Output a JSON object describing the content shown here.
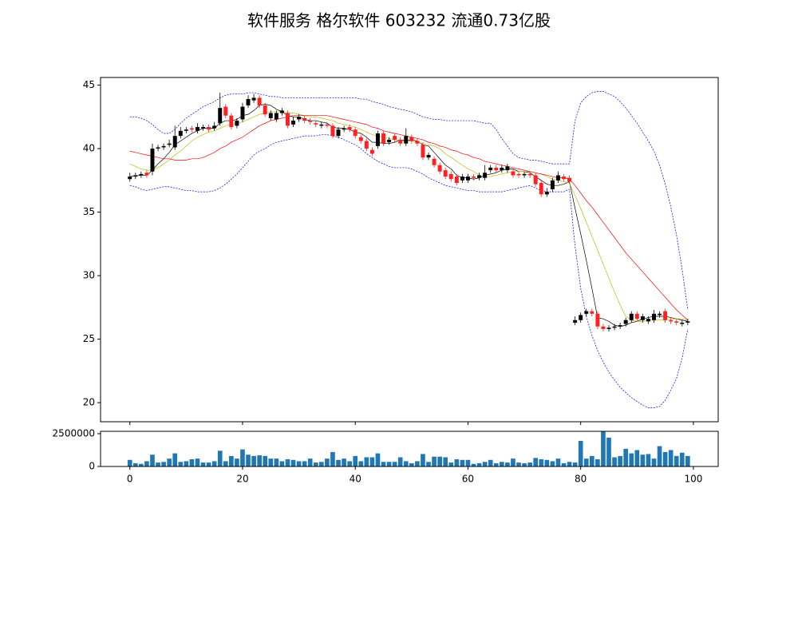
{
  "chart_data": [
    {
      "type": "candlestick",
      "title": "软件服务 格尔软件 603232 流通0.73亿股",
      "x": [
        0,
        1,
        2,
        3,
        4,
        5,
        6,
        7,
        8,
        9,
        10,
        11,
        12,
        13,
        14,
        15,
        16,
        17,
        18,
        19,
        20,
        21,
        22,
        23,
        24,
        25,
        26,
        27,
        28,
        29,
        30,
        31,
        32,
        33,
        34,
        35,
        36,
        37,
        38,
        39,
        40,
        41,
        42,
        43,
        44,
        45,
        46,
        47,
        48,
        49,
        50,
        51,
        52,
        53,
        54,
        55,
        56,
        57,
        58,
        59,
        60,
        61,
        62,
        63,
        64,
        65,
        66,
        67,
        68,
        69,
        70,
        71,
        72,
        73,
        74,
        75,
        76,
        77,
        78,
        79,
        80,
        81,
        82,
        83,
        84,
        85,
        86,
        87,
        88,
        89,
        90,
        91,
        92,
        93,
        94,
        95,
        96,
        97,
        98,
        99
      ],
      "open": [
        37.6,
        37.8,
        37.9,
        38.1,
        38.2,
        40.0,
        40.1,
        40.3,
        40.1,
        41.0,
        41.4,
        41.6,
        41.4,
        41.6,
        41.7,
        41.6,
        42.0,
        43.3,
        42.6,
        41.8,
        42.3,
        43.4,
        43.8,
        44.0,
        43.4,
        42.4,
        42.3,
        42.8,
        42.8,
        41.9,
        42.3,
        42.4,
        42.2,
        42.0,
        41.8,
        41.9,
        41.8,
        41.0,
        41.5,
        41.7,
        41.5,
        40.9,
        40.6,
        39.9,
        40.2,
        41.2,
        40.5,
        41.0,
        40.7,
        40.4,
        40.9,
        40.6,
        40.3,
        39.3,
        39.2,
        38.7,
        38.3,
        38.0,
        37.8,
        37.5,
        37.5,
        37.8,
        37.7,
        37.7,
        38.3,
        38.5,
        38.3,
        38.3,
        38.2,
        38.0,
        37.9,
        38.0,
        37.9,
        37.3,
        36.4,
        36.8,
        37.5,
        37.8,
        37.7,
        26.3,
        26.5,
        27.0,
        27.2,
        27.0,
        26.0,
        25.8,
        25.9,
        26.0,
        26.2,
        26.5,
        27.0,
        26.5,
        26.4,
        26.5,
        26.9,
        27.2,
        26.5,
        26.4,
        26.2,
        26.3
      ],
      "high": [
        38.1,
        38.1,
        38.2,
        38.3,
        40.4,
        40.3,
        40.4,
        40.7,
        41.8,
        41.7,
        41.7,
        41.8,
        42.0,
        41.9,
        41.9,
        42.1,
        44.4,
        43.5,
        42.8,
        42.4,
        43.6,
        44.2,
        44.3,
        44.2,
        43.6,
        43.0,
        43.0,
        43.2,
        43.0,
        42.5,
        42.7,
        42.6,
        42.4,
        42.2,
        42.1,
        42.1,
        42.0,
        41.7,
        41.8,
        41.9,
        41.7,
        41.1,
        40.8,
        40.1,
        41.4,
        41.4,
        40.9,
        41.2,
        40.9,
        41.6,
        41.1,
        40.8,
        40.5,
        39.7,
        39.4,
        38.9,
        38.5,
        38.2,
        38.0,
        38.0,
        38.0,
        38.0,
        38.1,
        38.7,
        38.7,
        38.7,
        38.7,
        38.8,
        38.4,
        38.2,
        38.2,
        38.2,
        38.1,
        37.5,
        36.9,
        37.7,
        38.2,
        38.0,
        37.9,
        26.8,
        27.1,
        27.4,
        27.4,
        27.2,
        26.2,
        26.1,
        26.2,
        26.3,
        26.7,
        27.2,
        27.2,
        27.0,
        26.8,
        27.3,
        27.2,
        27.4,
        26.7,
        26.6,
        26.5,
        26.6
      ],
      "low": [
        37.4,
        37.6,
        37.7,
        37.7,
        37.9,
        39.8,
        39.9,
        40.1,
        39.9,
        40.8,
        41.2,
        41.3,
        41.2,
        41.4,
        41.3,
        41.4,
        41.8,
        42.4,
        41.5,
        41.6,
        42.1,
        43.2,
        43.6,
        43.2,
        42.5,
        42.2,
        42.1,
        42.6,
        41.6,
        41.7,
        42.1,
        42.0,
        41.9,
        41.7,
        41.6,
        41.6,
        40.8,
        40.8,
        41.3,
        41.3,
        40.8,
        40.4,
        39.8,
        39.4,
        40.0,
        40.2,
        40.3,
        40.5,
        40.2,
        40.2,
        40.4,
        40.2,
        39.1,
        39.1,
        38.5,
        38.0,
        37.6,
        37.4,
        37.1,
        37.3,
        37.3,
        37.5,
        37.5,
        37.5,
        38.1,
        38.1,
        38.1,
        38.1,
        37.7,
        37.7,
        37.7,
        37.7,
        37.0,
        36.2,
        36.2,
        36.6,
        37.3,
        37.4,
        37.2,
        26.1,
        26.3,
        26.8,
        26.8,
        25.8,
        25.6,
        25.6,
        25.7,
        25.8,
        26.0,
        26.3,
        26.4,
        26.3,
        26.2,
        26.3,
        26.7,
        26.3,
        26.2,
        26.1,
        26.0,
        26.1
      ],
      "close": [
        37.8,
        37.9,
        38.0,
        37.9,
        40.0,
        40.1,
        40.2,
        40.4,
        41.0,
        41.4,
        41.5,
        41.5,
        41.7,
        41.7,
        41.5,
        41.8,
        43.2,
        42.6,
        41.7,
        42.2,
        43.3,
        43.9,
        44.0,
        43.4,
        42.7,
        42.8,
        42.8,
        43.0,
        41.8,
        42.2,
        42.5,
        42.2,
        42.1,
        41.9,
        41.9,
        41.8,
        41.0,
        41.5,
        41.6,
        41.5,
        41.0,
        40.6,
        40.0,
        39.6,
        41.2,
        40.4,
        40.7,
        40.7,
        40.4,
        41.0,
        40.6,
        40.4,
        39.3,
        39.5,
        38.7,
        38.2,
        37.8,
        37.6,
        37.3,
        37.8,
        37.8,
        37.7,
        37.9,
        38.1,
        38.5,
        38.3,
        38.5,
        38.6,
        37.9,
        37.9,
        38.0,
        37.9,
        37.2,
        36.4,
        36.6,
        37.5,
        37.9,
        37.6,
        37.4,
        26.5,
        26.9,
        27.2,
        27.0,
        26.0,
        25.8,
        25.9,
        26.0,
        26.1,
        26.5,
        27.0,
        26.6,
        26.8,
        26.6,
        27.0,
        27.0,
        26.5,
        26.4,
        26.3,
        26.3,
        26.4
      ],
      "up_color": "#000000",
      "down_color": "#ff2020",
      "lines": [
        {
          "color": "#000000",
          "style": "solid",
          "values": [
            37.8,
            37.85,
            37.9,
            37.9,
            38.3,
            38.8,
            39.2,
            39.7,
            40.3,
            40.6,
            40.9,
            41.2,
            41.4,
            41.6,
            41.6,
            41.6,
            42.0,
            42.2,
            42.2,
            42.3,
            42.6,
            42.7,
            43.0,
            43.4,
            43.5,
            43.4,
            43.1,
            42.9,
            42.6,
            42.5,
            42.5,
            42.3,
            42.2,
            42.2,
            42.1,
            42.0,
            41.7,
            41.6,
            41.6,
            41.5,
            41.3,
            41.2,
            40.9,
            40.5,
            40.5,
            40.4,
            40.4,
            40.5,
            40.7,
            40.6,
            40.7,
            40.6,
            40.3,
            40.2,
            39.7,
            39.2,
            38.7,
            38.4,
            37.9,
            37.7,
            37.7,
            37.6,
            37.7,
            37.9,
            38.0,
            38.1,
            38.3,
            38.4,
            38.4,
            38.2,
            38.2,
            38.1,
            37.8,
            37.5,
            37.2,
            37.1,
            37.1,
            37.2,
            37.4,
            35.3,
            33.3,
            31.2,
            29.0,
            26.7,
            26.6,
            26.4,
            26.1,
            26.0,
            26.1,
            26.3,
            26.4,
            26.6,
            26.7,
            26.8,
            26.8,
            26.8,
            26.7,
            26.6,
            26.5,
            26.4
          ]
        },
        {
          "color": "#bcbc10",
          "style": "solid",
          "values": [
            38.8,
            38.6,
            38.4,
            38.3,
            38.3,
            38.5,
            38.8,
            39.1,
            39.5,
            39.8,
            40.2,
            40.6,
            40.9,
            41.1,
            41.3,
            41.4,
            41.6,
            41.8,
            41.9,
            42.0,
            42.1,
            42.3,
            42.5,
            42.7,
            42.8,
            42.9,
            42.9,
            42.9,
            42.8,
            42.8,
            42.7,
            42.6,
            42.5,
            42.5,
            42.4,
            42.3,
            42.2,
            42.0,
            41.9,
            41.8,
            41.7,
            41.5,
            41.3,
            41.1,
            41.0,
            40.9,
            40.8,
            40.7,
            40.6,
            40.6,
            40.6,
            40.5,
            40.4,
            40.3,
            40.2,
            40.0,
            39.6,
            39.3,
            39.0,
            38.7,
            38.4,
            38.2,
            37.9,
            37.8,
            37.8,
            37.9,
            38.0,
            38.1,
            38.2,
            38.2,
            38.2,
            38.2,
            38.1,
            38.0,
            37.8,
            37.6,
            37.5,
            37.4,
            37.3,
            36.3,
            35.3,
            34.2,
            33.1,
            32.0,
            30.9,
            29.8,
            28.7,
            27.7,
            26.8,
            26.5,
            26.4,
            26.4,
            26.5,
            26.5,
            26.5,
            26.5,
            26.6,
            26.6,
            26.6,
            26.5
          ]
        },
        {
          "color": "#ff0000",
          "style": "solid",
          "values": [
            39.8,
            39.7,
            39.6,
            39.5,
            39.4,
            39.3,
            39.2,
            39.2,
            39.1,
            39.1,
            39.1,
            39.2,
            39.2,
            39.3,
            39.5,
            39.7,
            40.0,
            40.2,
            40.5,
            40.7,
            40.9,
            41.2,
            41.5,
            41.8,
            42.0,
            42.2,
            42.3,
            42.4,
            42.5,
            42.6,
            42.6,
            42.6,
            42.6,
            42.6,
            42.6,
            42.6,
            42.5,
            42.4,
            42.3,
            42.2,
            42.1,
            42.0,
            41.9,
            41.7,
            41.6,
            41.4,
            41.3,
            41.2,
            41.1,
            41.0,
            40.9,
            40.8,
            40.7,
            40.5,
            40.4,
            40.2,
            40.1,
            39.9,
            39.8,
            39.6,
            39.5,
            39.3,
            39.2,
            39.0,
            38.9,
            38.8,
            38.7,
            38.6,
            38.5,
            38.4,
            38.3,
            38.2,
            38.1,
            38.0,
            37.9,
            37.8,
            37.7,
            37.7,
            37.6,
            37.1,
            36.5,
            35.9,
            35.4,
            34.8,
            34.2,
            33.6,
            33.0,
            32.4,
            31.8,
            31.3,
            30.8,
            30.3,
            29.8,
            29.3,
            28.8,
            28.3,
            27.8,
            27.3,
            26.9,
            26.5
          ]
        },
        {
          "color": "#0000ff",
          "style": "dashed",
          "values": [
            42.5,
            42.5,
            42.4,
            42.2,
            41.9,
            41.5,
            41.2,
            41.2,
            41.5,
            42.0,
            42.4,
            42.7,
            43.0,
            43.3,
            43.5,
            43.7,
            44.0,
            44.2,
            44.3,
            44.3,
            44.3,
            44.4,
            44.4,
            44.3,
            44.2,
            44.1,
            44.1,
            44.0,
            44.0,
            44.0,
            44.0,
            44.0,
            44.0,
            44.0,
            44.0,
            44.0,
            44.0,
            44.0,
            44.0,
            44.0,
            44.0,
            43.9,
            43.9,
            43.7,
            43.6,
            43.5,
            43.3,
            43.2,
            43.1,
            43.0,
            42.9,
            42.7,
            42.5,
            42.4,
            42.3,
            42.3,
            42.2,
            42.2,
            42.2,
            42.2,
            42.2,
            42.2,
            42.1,
            42.0,
            42.0,
            41.5,
            40.8,
            40.2,
            39.6,
            39.3,
            39.2,
            39.1,
            39.1,
            39.0,
            38.9,
            38.8,
            38.8,
            38.8,
            38.8,
            42.2,
            43.6,
            44.1,
            44.4,
            44.5,
            44.5,
            44.3,
            44.1,
            43.7,
            43.2,
            42.6,
            42.0,
            41.3,
            40.6,
            39.8,
            38.7,
            37.2,
            35.4,
            33.2,
            30.5,
            27.3
          ]
        },
        {
          "color": "#0000ff",
          "style": "dashed",
          "values": [
            37.1,
            37.0,
            36.8,
            36.7,
            36.8,
            36.9,
            37.0,
            37.0,
            36.9,
            36.8,
            36.7,
            36.7,
            36.6,
            36.6,
            36.6,
            36.7,
            36.9,
            37.2,
            37.6,
            38.0,
            38.5,
            39.0,
            39.5,
            39.8,
            40.0,
            40.3,
            40.5,
            40.6,
            40.7,
            40.8,
            40.9,
            41.0,
            41.0,
            41.0,
            41.1,
            41.1,
            41.0,
            40.9,
            40.7,
            40.5,
            40.3,
            40.0,
            39.6,
            39.3,
            39.0,
            38.8,
            38.6,
            38.5,
            38.5,
            38.5,
            38.4,
            38.2,
            38.0,
            37.7,
            37.5,
            37.3,
            37.1,
            37.0,
            36.9,
            36.8,
            36.7,
            36.7,
            36.6,
            36.6,
            36.6,
            36.6,
            36.6,
            36.7,
            36.8,
            36.9,
            37.0,
            37.1,
            36.9,
            36.7,
            36.6,
            36.6,
            36.6,
            36.6,
            36.8,
            32.3,
            29.0,
            26.8,
            25.3,
            24.1,
            23.2,
            22.4,
            21.8,
            21.2,
            20.8,
            20.4,
            20.1,
            19.8,
            19.6,
            19.6,
            19.7,
            20.2,
            21.0,
            21.9,
            23.5,
            25.8
          ]
        }
      ],
      "ylim": [
        18.5,
        45.6
      ],
      "yticks": [
        20,
        25,
        30,
        35,
        40,
        45
      ]
    },
    {
      "type": "bar",
      "color": "#1f77b4",
      "x": [
        0,
        1,
        2,
        3,
        4,
        5,
        6,
        7,
        8,
        9,
        10,
        11,
        12,
        13,
        14,
        15,
        16,
        17,
        18,
        19,
        20,
        21,
        22,
        23,
        24,
        25,
        26,
        27,
        28,
        29,
        30,
        31,
        32,
        33,
        34,
        35,
        36,
        37,
        38,
        39,
        40,
        41,
        42,
        43,
        44,
        45,
        46,
        47,
        48,
        49,
        50,
        51,
        52,
        53,
        54,
        55,
        56,
        57,
        58,
        59,
        60,
        61,
        62,
        63,
        64,
        65,
        66,
        67,
        68,
        69,
        70,
        71,
        72,
        73,
        74,
        75,
        76,
        77,
        78,
        79,
        80,
        81,
        82,
        83,
        84,
        85,
        86,
        87,
        88,
        89,
        90,
        91,
        92,
        93,
        94,
        95,
        96,
        97,
        98,
        99
      ],
      "values": [
        500000,
        250000,
        200000,
        400000,
        900000,
        300000,
        350000,
        600000,
        1000000,
        350000,
        400000,
        550000,
        600000,
        300000,
        300000,
        400000,
        1200000,
        400000,
        800000,
        600000,
        1300000,
        900000,
        800000,
        850000,
        800000,
        600000,
        600000,
        400000,
        550000,
        500000,
        400000,
        400000,
        600000,
        300000,
        350000,
        600000,
        1100000,
        500000,
        600000,
        400000,
        800000,
        400000,
        700000,
        700000,
        1000000,
        350000,
        350000,
        350000,
        700000,
        400000,
        250000,
        400000,
        950000,
        350000,
        750000,
        750000,
        700000,
        300000,
        550000,
        500000,
        500000,
        200000,
        250000,
        350000,
        500000,
        250000,
        350000,
        300000,
        600000,
        300000,
        250000,
        300000,
        650000,
        550000,
        500000,
        400000,
        600000,
        250000,
        350000,
        300000,
        1950000,
        600000,
        800000,
        550000,
        2650000,
        2200000,
        700000,
        800000,
        1350000,
        1000000,
        1250000,
        900000,
        950000,
        600000,
        1550000,
        1100000,
        1250000,
        800000,
        1050000,
        800000
      ],
      "xlim": [
        -5.2,
        104.4
      ],
      "xticks": [
        0,
        20,
        40,
        60,
        80,
        100
      ],
      "ylim": [
        0,
        2680000
      ],
      "yticks": [
        0,
        2500000
      ]
    }
  ]
}
